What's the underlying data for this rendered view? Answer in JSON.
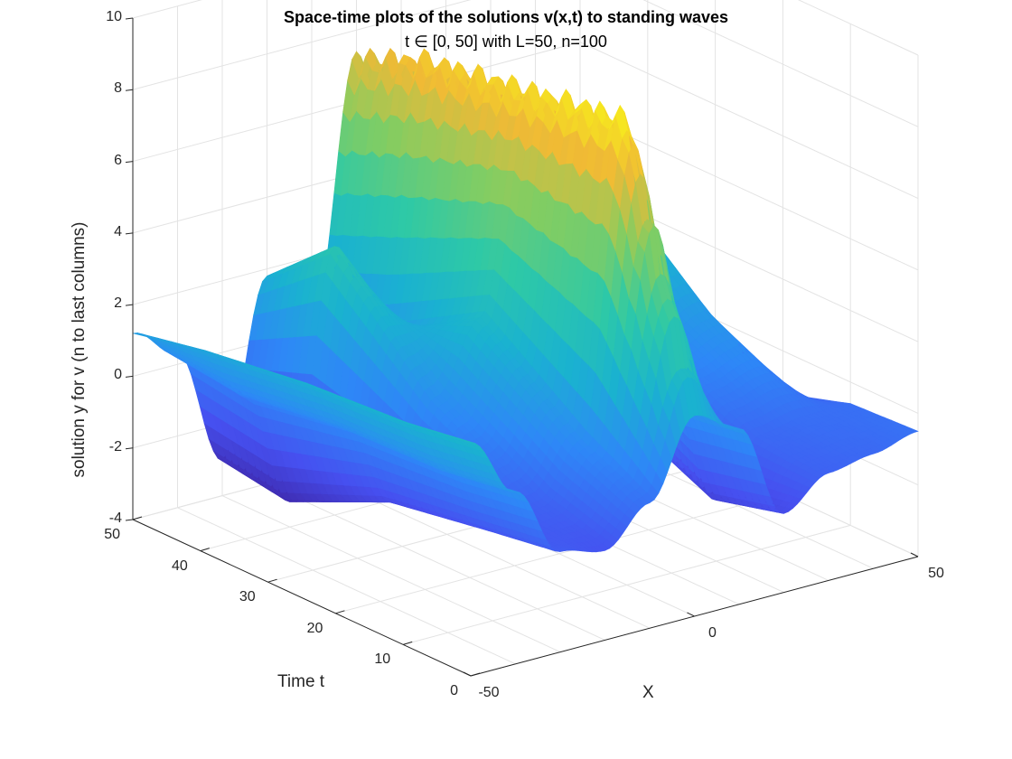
{
  "chart_data": {
    "type": "surface",
    "title": "Space-time plots of the solutions v(x,t) to standing waves",
    "subtitle": "t ∈ [0, 50] with L=50, n=100",
    "xlabel": "X",
    "ylabel": "Time t",
    "zlabel": "solution y for v (n to last columns)",
    "xlim": [
      -50,
      50
    ],
    "ylim": [
      0,
      50
    ],
    "zlim": [
      -4,
      10
    ],
    "x_ticks": [
      "-50",
      "0",
      "50"
    ],
    "y_ticks": [
      "0",
      "10",
      "20",
      "30",
      "40",
      "50"
    ],
    "z_ticks": [
      "-4",
      "-2",
      "0",
      "2",
      "4",
      "6",
      "8",
      "10"
    ],
    "grid": true,
    "colormap": "parula",
    "color_range": [
      "#3e26a8",
      "#2ec9a6",
      "#f9fb15"
    ],
    "view": "3d-isometric",
    "surface_profiles": [
      {
        "t": 0,
        "x": [
          -50,
          -40,
          -30,
          -20,
          -10,
          0,
          10,
          20,
          30,
          40,
          50
        ],
        "v": [
          2.5,
          0.8,
          -1.2,
          -1.5,
          -0.5,
          1.6,
          0.9,
          -1.8,
          -1.0,
          -0.8,
          -0.5
        ]
      },
      {
        "t": 10,
        "x": [
          -50,
          -40,
          -30,
          -20,
          -10,
          0,
          10,
          20,
          30,
          40,
          50
        ],
        "v": [
          2.2,
          0.5,
          -1.5,
          -1.0,
          0.4,
          9.0,
          0.6,
          -2.3,
          -0.8,
          -0.6,
          -0.6
        ]
      },
      {
        "t": 25,
        "x": [
          -50,
          -40,
          -30,
          -20,
          -10,
          0,
          10,
          20,
          30,
          40,
          50
        ],
        "v": [
          2.0,
          0.4,
          -2.0,
          0.6,
          2.5,
          8.5,
          2.5,
          -1.0,
          0.5,
          1.0,
          -1.5
        ]
      },
      {
        "t": 40,
        "x": [
          -50,
          -40,
          -30,
          -20,
          -10,
          0,
          10,
          20,
          30,
          40,
          50
        ],
        "v": [
          1.6,
          0.0,
          -3.3,
          3.5,
          0.8,
          8.0,
          3.5,
          -2.5,
          2.0,
          3.5,
          -1.0
        ]
      },
      {
        "t": 50,
        "x": [
          -50,
          -40,
          -30,
          -20,
          -10,
          0,
          10,
          20,
          30,
          40,
          50
        ],
        "v": [
          1.2,
          0.3,
          -3.0,
          1.8,
          0.0,
          7.2,
          0.5,
          -2.0,
          0.8,
          1.2,
          -0.8
        ]
      }
    ]
  }
}
